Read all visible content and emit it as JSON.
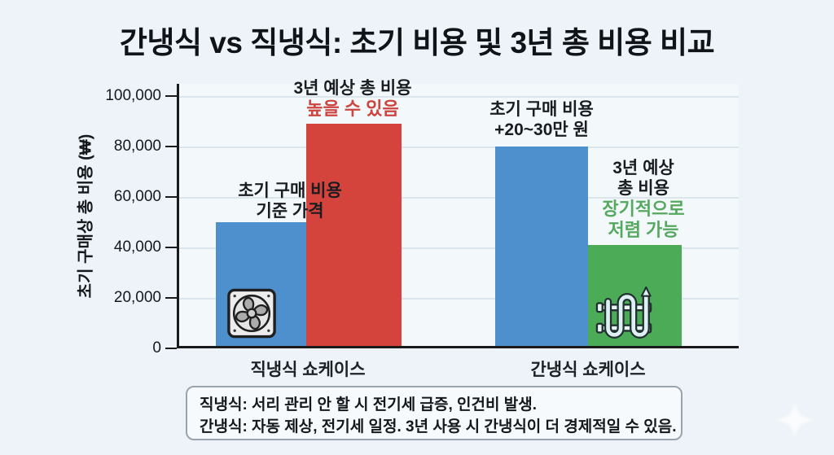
{
  "page": {
    "title": "간냉식 vs 직냉식: 초기 비용 및 3년 총 비용 비교"
  },
  "chart_data": {
    "type": "bar",
    "title": "간냉식 vs 직냉식: 초기 비용 및 3년 총 비용 비교",
    "xlabel": "",
    "ylabel": "초기 구매상 총 비용 (₩)",
    "categories": [
      "직냉식 쇼케이스",
      "간냉식 쇼케이스"
    ],
    "series": [
      {
        "name": "초기 구매 비용",
        "values": [
          49000,
          79000
        ],
        "colors": [
          "#4e8fce",
          "#4e8fce"
        ]
      },
      {
        "name": "3년 예상 총 비용",
        "values": [
          88000,
          40000
        ],
        "colors": [
          "#d5433d",
          "#4cab57"
        ]
      }
    ],
    "ylim": [
      0,
      100000
    ],
    "ytick_labels": [
      "0",
      "20,000",
      "40,000",
      "60,000",
      "80,000",
      "100,000"
    ],
    "grid": true,
    "legend_position": "none",
    "annotations": [
      {
        "target": "직냉식 초기 구매 비용 막대",
        "lines": [
          "초기 구매 비용",
          "기준 가격"
        ]
      },
      {
        "target": "직냉식 3년 총 비용 막대",
        "lines": [
          "3년 예상 총 비용",
          "높을 수 있음"
        ]
      },
      {
        "target": "간냉식 초기 구매 비용 막대",
        "lines": [
          "초기 구매 비용",
          "+20~30만 원"
        ]
      },
      {
        "target": "간냉식 3년 총 비용 막대",
        "lines": [
          "3년 예상",
          "총 비용",
          "장기적으로",
          "저렴 가능"
        ]
      }
    ]
  },
  "note": {
    "line1": "직냉식: 서리 관리 안 할 시 전기세 급증, 인건비 발생.",
    "line2": "간냉식: 자동 제상, 전기세 일정. 3년 사용 시 간냉식이 더 경제적일 수 있음."
  },
  "colors": {
    "blue_bar": "#4e8fce",
    "red_bar": "#d5433d",
    "green_bar": "#4cab57",
    "red_text": "#cc4540",
    "green_text": "#55a85f",
    "background": "#edf3f8",
    "plot_background": "#f3f8fb",
    "axis": "#1a1a1a",
    "gridline": "#dbe5ec"
  }
}
